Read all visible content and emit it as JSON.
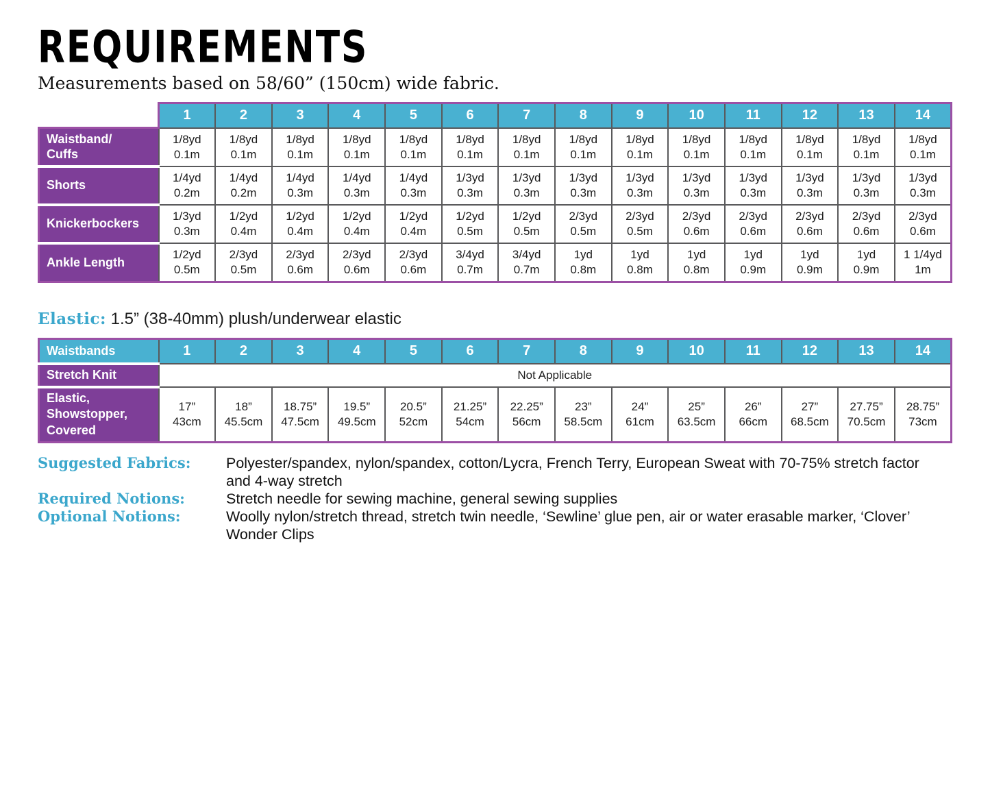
{
  "page": {
    "title": "REQUIREMENTS",
    "subtitle": "Measurements based on 58/60” (150cm) wide fabric."
  },
  "colors": {
    "teal_header": "#49B1D1",
    "purple_header": "#7E3E98",
    "table_outer_border": "#9C50A5",
    "cell_border": "#59595B",
    "accent_label_text": "#3BA7CC"
  },
  "fabric_table": {
    "sizes": [
      "1",
      "2",
      "3",
      "4",
      "5",
      "6",
      "7",
      "8",
      "9",
      "10",
      "11",
      "12",
      "13",
      "14"
    ],
    "rows": [
      {
        "label": "Waistband/\nCuffs",
        "values": [
          "1/8yd\n0.1m",
          "1/8yd\n0.1m",
          "1/8yd\n0.1m",
          "1/8yd\n0.1m",
          "1/8yd\n0.1m",
          "1/8yd\n0.1m",
          "1/8yd\n0.1m",
          "1/8yd\n0.1m",
          "1/8yd\n0.1m",
          "1/8yd\n0.1m",
          "1/8yd\n0.1m",
          "1/8yd\n0.1m",
          "1/8yd\n0.1m",
          "1/8yd\n0.1m"
        ]
      },
      {
        "label": "Shorts",
        "values": [
          "1/4yd\n0.2m",
          "1/4yd\n0.2m",
          "1/4yd\n0.3m",
          "1/4yd\n0.3m",
          "1/4yd\n0.3m",
          "1/3yd\n0.3m",
          "1/3yd\n0.3m",
          "1/3yd\n0.3m",
          "1/3yd\n0.3m",
          "1/3yd\n0.3m",
          "1/3yd\n0.3m",
          "1/3yd\n0.3m",
          "1/3yd\n0.3m",
          "1/3yd\n0.3m"
        ]
      },
      {
        "label": "Knickerbockers",
        "values": [
          "1/3yd\n0.3m",
          "1/2yd\n0.4m",
          "1/2yd\n0.4m",
          "1/2yd\n0.4m",
          "1/2yd\n0.4m",
          "1/2yd\n0.5m",
          "1/2yd\n0.5m",
          "2/3yd\n0.5m",
          "2/3yd\n0.5m",
          "2/3yd\n0.6m",
          "2/3yd\n0.6m",
          "2/3yd\n0.6m",
          "2/3yd\n0.6m",
          "2/3yd\n0.6m"
        ]
      },
      {
        "label": "Ankle Length",
        "values": [
          "1/2yd\n0.5m",
          "2/3yd\n0.5m",
          "2/3yd\n0.6m",
          "2/3yd\n0.6m",
          "2/3yd\n0.6m",
          "3/4yd\n0.7m",
          "3/4yd\n0.7m",
          "1yd\n0.8m",
          "1yd\n0.8m",
          "1yd\n0.8m",
          "1yd\n0.9m",
          "1yd\n0.9m",
          "1yd\n0.9m",
          "1 1/4yd\n1m"
        ]
      }
    ]
  },
  "elastic_note": {
    "label": "Elastic:",
    "text": " 1.5” (38-40mm) plush/underwear elastic"
  },
  "waistband_table": {
    "header_label": "Waistbands",
    "sizes": [
      "1",
      "2",
      "3",
      "4",
      "5",
      "6",
      "7",
      "8",
      "9",
      "10",
      "11",
      "12",
      "13",
      "14"
    ],
    "stretch_knit": {
      "label": "Stretch Knit",
      "merged_value": "Not Applicable"
    },
    "elastic_row": {
      "label": "Elastic,\nShowstopper,\nCovered",
      "values": [
        "17”\n43cm",
        "18”\n45.5cm",
        "18.75”\n47.5cm",
        "19.5”\n49.5cm",
        "20.5”\n52cm",
        "21.25”\n54cm",
        "22.25”\n56cm",
        "23”\n58.5cm",
        "24”\n61cm",
        "25”\n63.5cm",
        "26”\n66cm",
        "27”\n68.5cm",
        "27.75”\n70.5cm",
        "28.75”\n73cm"
      ]
    }
  },
  "notes": [
    {
      "label": "Suggested Fabrics:",
      "text": "Polyester/spandex, nylon/spandex, cotton/Lycra, French Terry, European Sweat with 70-75% stretch factor and 4-way stretch"
    },
    {
      "label": "Required Notions:",
      "text": "Stretch needle for sewing machine, general sewing supplies"
    },
    {
      "label": "Optional Notions:",
      "text": "Woolly nylon/stretch thread, stretch twin needle, ‘Sewline’ glue pen, air or water erasable marker, ‘Clover’ Wonder Clips"
    }
  ]
}
